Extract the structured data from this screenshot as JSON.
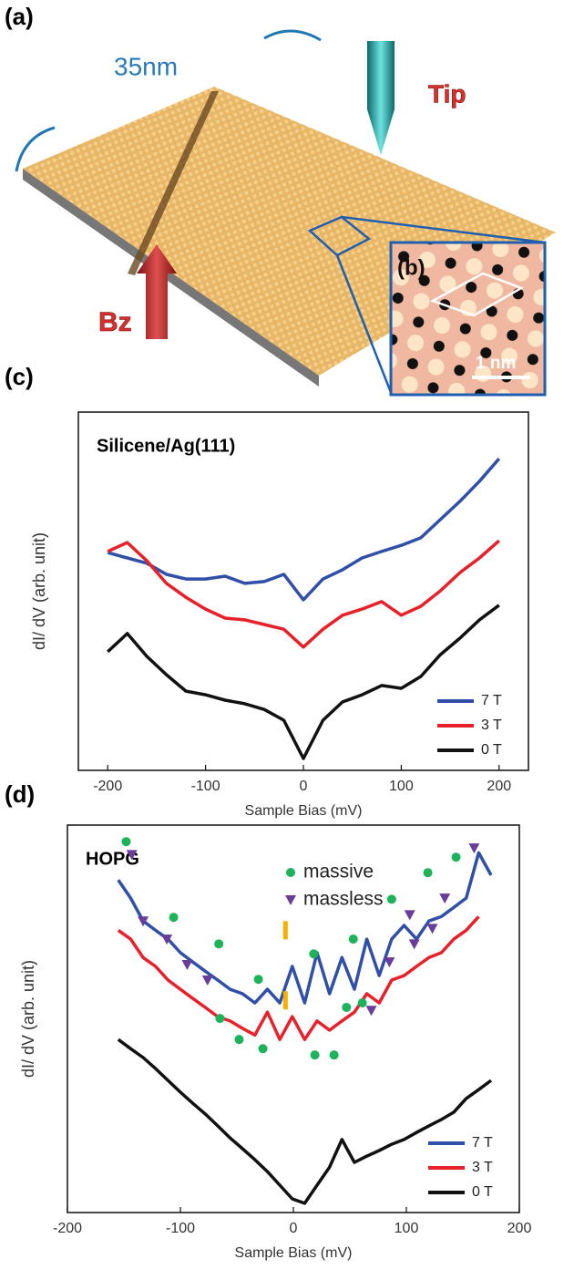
{
  "panel_a": {
    "label": "(a)",
    "scale": "35nm",
    "tip": "Tip",
    "field": "Bz",
    "inset_label": "(b)",
    "inset_scale": "1 nm"
  },
  "chart_data": [
    {
      "type": "line",
      "panel_label": "(c)",
      "title": "Silicene/Ag(111)",
      "xlabel": "Sample Bias (mV)",
      "ylabel": "dI/ dV (arb. unit)",
      "x": [
        -200,
        -180,
        -160,
        -140,
        -120,
        -100,
        -80,
        -60,
        -40,
        -20,
        0,
        20,
        40,
        60,
        80,
        100,
        120,
        140,
        160,
        180,
        200
      ],
      "series": [
        {
          "name": "7 T",
          "color": "#2f4fa8",
          "values": [
            60.8,
            59.3,
            57.8,
            54.7,
            53.4,
            53.4,
            54.2,
            52.2,
            52.7,
            54.7,
            47.6,
            53.4,
            56.0,
            59.3,
            61.1,
            62.8,
            64.9,
            70.0,
            75.1,
            80.7,
            87.0
          ]
        },
        {
          "name": "3 T",
          "color": "#e8202a",
          "values": [
            61.1,
            63.6,
            58.5,
            52.2,
            48.3,
            45.0,
            42.5,
            42.0,
            40.7,
            39.4,
            34.4,
            39.4,
            43.3,
            45.0,
            47.1,
            43.3,
            45.8,
            50.1,
            55.2,
            59.3,
            64.1
          ]
        },
        {
          "name": "0 T",
          "color": "#111111",
          "values": [
            33.1,
            38.2,
            31.8,
            26.7,
            22.1,
            21.1,
            19.6,
            18.6,
            17.0,
            14.0,
            3.3,
            14.0,
            19.1,
            21.1,
            23.7,
            22.9,
            26.2,
            32.3,
            36.9,
            42.0,
            46.1
          ]
        }
      ],
      "xlim": [
        -230,
        230
      ],
      "ylim": [
        0,
        100
      ],
      "xticks": [
        -200,
        -100,
        0,
        100,
        200
      ],
      "yticks": [],
      "legend": "lower right"
    },
    {
      "type": "line",
      "panel_label": "(d)",
      "title": "HOPG",
      "xlabel": "Sample Bias (mV)",
      "ylabel": "dI/ dV (arb. unit)",
      "x": [
        -155,
        -144,
        -133,
        -122,
        -111,
        -100,
        -89,
        -78,
        -67,
        -56,
        -45,
        -34,
        -23,
        -12,
        -1,
        10,
        21,
        32,
        43,
        54,
        65,
        76,
        87,
        98,
        109,
        120,
        131,
        142,
        153,
        164,
        175
      ],
      "series": [
        {
          "name": "7 T",
          "color": "#2f4fa8",
          "values": [
            90.1,
            85.2,
            79.0,
            76.5,
            74.1,
            70.4,
            67.9,
            65.4,
            63.0,
            60.5,
            59.3,
            56.8,
            60.5,
            56.8,
            66.7,
            56.8,
            70.4,
            59.3,
            69.1,
            60.5,
            74.1,
            64.2,
            74.1,
            77.8,
            74.1,
            79.0,
            80.2,
            82.7,
            85.2,
            97.5,
            91.4
          ]
        },
        {
          "name": "3 T",
          "color": "#e8202a",
          "values": [
            76.5,
            74.1,
            69.1,
            66.7,
            63.0,
            60.5,
            58.0,
            55.6,
            53.1,
            51.9,
            49.9,
            48.1,
            54.3,
            46.9,
            53.1,
            46.9,
            51.9,
            49.4,
            51.9,
            54.3,
            59.3,
            56.8,
            63.0,
            64.2,
            66.7,
            69.1,
            70.4,
            74.1,
            76.5,
            80.2,
            null
          ]
        },
        {
          "name": "0 T",
          "color": "#111111",
          "values": [
            46.9,
            44.4,
            42.0,
            39.0,
            35.8,
            32.6,
            29.6,
            26.7,
            23.5,
            20.2,
            17.3,
            14.3,
            11.1,
            7.4,
            3.7,
            2.5,
            7.4,
            12.3,
            19.8,
            13.6,
            15.3,
            16.8,
            18.5,
            19.8,
            21.7,
            23.5,
            25.2,
            27.2,
            30.9,
            33.3,
            35.8
          ]
        }
      ],
      "markers": [
        {
          "name": "massive",
          "shape": "circle",
          "color": "#1cb35a",
          "x": [
            -148,
            -106,
            -66,
            -31,
            18,
            53,
            87,
            119,
            144,
            -65,
            -48,
            -27,
            19,
            36,
            47,
            61
          ],
          "y": [
            100.5,
            80.0,
            72.8,
            63.2,
            70.1,
            74.1,
            84.9,
            92.1,
            96.3,
            52.6,
            46.9,
            44.4,
            42.7,
            42.7,
            55.6,
            56.8
          ]
        },
        {
          "name": "massless",
          "shape": "triangle",
          "color": "#6a3d9a",
          "x": [
            -143,
            -133,
            -112,
            -94,
            -76,
            69,
            85,
            103,
            107,
            123,
            134,
            160
          ],
          "y": [
            97.0,
            79.0,
            74.1,
            67.2,
            63.0,
            54.8,
            67.9,
            80.7,
            72.8,
            77.0,
            85.2,
            98.8
          ]
        },
        {
          "shape": "bar",
          "color": "#f5b000",
          "x": [
            -7,
            -7
          ],
          "y": [
            76.5,
            57.5
          ]
        }
      ],
      "xlim": [
        -200,
        200
      ],
      "ylim": [
        0,
        105
      ],
      "xticks": [
        -200,
        -100,
        0,
        100,
        200
      ],
      "yticks": [],
      "legend": "lower right"
    }
  ]
}
